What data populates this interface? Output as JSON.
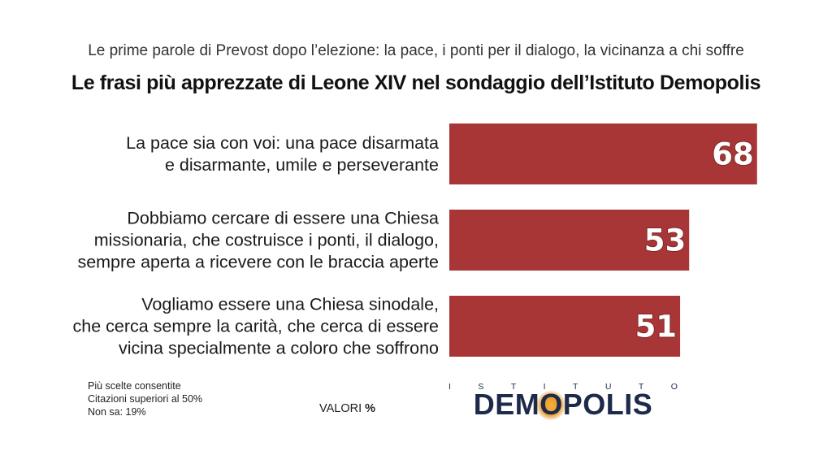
{
  "header": {
    "subtitle": "Le prime parole di Prevost dopo l’elezione: la pace, i ponti per il dialogo, la vicinanza a chi soffre",
    "title": "Le frasi più apprezzate di Leone XIV nel sondaggio dell’Istituto Demopolis"
  },
  "chart_data": {
    "type": "bar",
    "orientation": "horizontal",
    "categories": [
      [
        "La pace sia con voi: una pace disarmata",
        "e disarmante, umile e perseverante"
      ],
      [
        "Dobbiamo cercare di essere una Chiesa",
        "missionaria, che costruisce i ponti, il dialogo,",
        "sempre aperta a ricevere con le braccia aperte"
      ],
      [
        "Vogliamo essere una Chiesa sinodale,",
        "che cerca sempre la carità, che cerca di essere",
        "vicina specialmente a coloro che soffrono"
      ]
    ],
    "values": [
      68,
      53,
      51
    ],
    "xlim": [
      0,
      100
    ],
    "bar_color": "#a83636",
    "label_color": "#ffffff",
    "grid": false,
    "legend": "none"
  },
  "notes": {
    "line1": "Più scelte consentite",
    "line2": "Citazioni superiori al 50%",
    "line3": "Non sa: 19%"
  },
  "unit_label": {
    "text": "VALORI",
    "symbol": "%"
  },
  "logo": {
    "top_letters": [
      "I",
      "S",
      "T",
      "I",
      "T",
      "U",
      "T",
      "O"
    ],
    "name": "DEMOPOLIS",
    "primary_color": "#1d2a4a",
    "accent_color": "#e89a2a"
  }
}
